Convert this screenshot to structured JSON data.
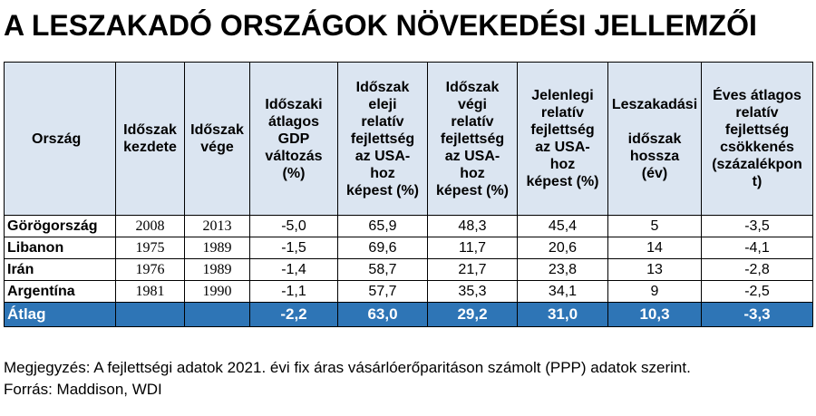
{
  "title": "A LESZAKADÓ ORSZÁGOK NÖVEKEDÉSI JELLEMZŐI",
  "columns": [
    "Ország",
    "Időszak\nkezdete",
    "Időszak\nvége",
    "Időszaki\nátlagos\nGDP\nváltozás\n(%)",
    "Időszak\neleji\nrelatív\nfejlettség\naz USA-\nhoz\nképest (%)",
    "Időszak\nvégi\nrelatív\nfejlettség\naz USA-\nhoz\nképest (%)",
    "Jelenlegi\nrelatív\nfejlettség\naz USA-\nhoz\nképest (%)",
    "Leszakadási\n\nidőszak\nhossza\n(év)",
    "Éves átlagos\nrelatív\nfejlettség\ncsökkenés\n(százalékpon\nt)"
  ],
  "rows": [
    [
      "Görögország",
      "2008",
      "2013",
      "-5,0",
      "65,9",
      "48,3",
      "45,4",
      "5",
      "-3,5"
    ],
    [
      "Libanon",
      "1975",
      "1989",
      "-1,5",
      "69,6",
      "11,7",
      "20,6",
      "14",
      "-4,1"
    ],
    [
      "Irán",
      "1976",
      "1989",
      "-1,4",
      "58,7",
      "21,7",
      "23,8",
      "13",
      "-2,8"
    ],
    [
      "Argentína",
      "1981",
      "1990",
      "-1,1",
      "57,7",
      "35,3",
      "34,1",
      "9",
      "-2,5"
    ]
  ],
  "average": [
    "Átlag",
    "",
    "",
    "-2,2",
    "63,0",
    "29,2",
    "31,0",
    "10,3",
    "-3,3"
  ],
  "note": "Megjegyzés: A fejlettségi adatok 2021. évi fix áras vásárlóerőparitáson számolt (PPP) adatok szerint.",
  "source": "Forrás: Maddison, WDI"
}
